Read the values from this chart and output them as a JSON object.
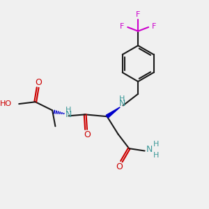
{
  "bg_color": "#f0f0f0",
  "bond_color": "#1a1a1a",
  "O_color": "#cc0000",
  "N_color": "#3d9999",
  "F_color": "#cc00cc",
  "H_color": "#3d9999",
  "wedge_color": "#0000cc",
  "lw": 1.5,
  "figsize": [
    3.0,
    3.0
  ],
  "dpi": 100,
  "xlim": [
    0,
    10
  ],
  "ylim": [
    0,
    10
  ]
}
